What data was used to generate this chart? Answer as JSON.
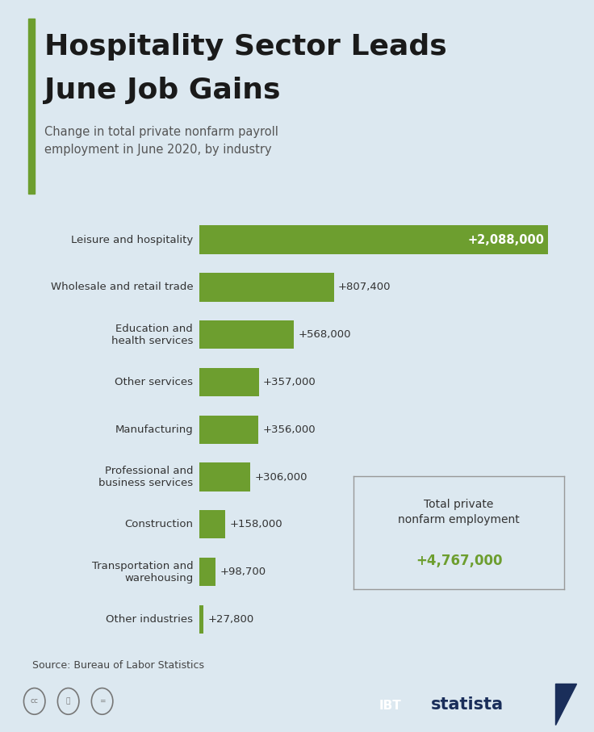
{
  "title_line1": "Hospitality Sector Leads",
  "title_line2": "June Job Gains",
  "subtitle": "Change in total private nonfarm payroll\nemployment in June 2020, by industry",
  "categories": [
    "Leisure and hospitality",
    "Wholesale and retail trade",
    "Education and\nhealth services",
    "Other services",
    "Manufacturing",
    "Professional and\nbusiness services",
    "Construction",
    "Transportation and\nwarehousing",
    "Other industries"
  ],
  "values": [
    2088000,
    807400,
    568000,
    357000,
    356000,
    306000,
    158000,
    98700,
    27800
  ],
  "labels": [
    "+2,088,000",
    "+807,400",
    "+568,000",
    "+357,000",
    "+356,000",
    "+306,000",
    "+158,000",
    "+98,700",
    "+27,800"
  ],
  "bar_color": "#6d9e2f",
  "bg_color": "#dce8f0",
  "text_color": "#333333",
  "title_color": "#1a1a1a",
  "green_label_color": "#6d9e2f",
  "source_text": "Source: Bureau of Labor Statistics",
  "total_label": "Total private\nnonfarm employment",
  "total_value": "+4,767,000",
  "accent_color": "#6d9e2f",
  "dark_navy": "#1a2e5a"
}
